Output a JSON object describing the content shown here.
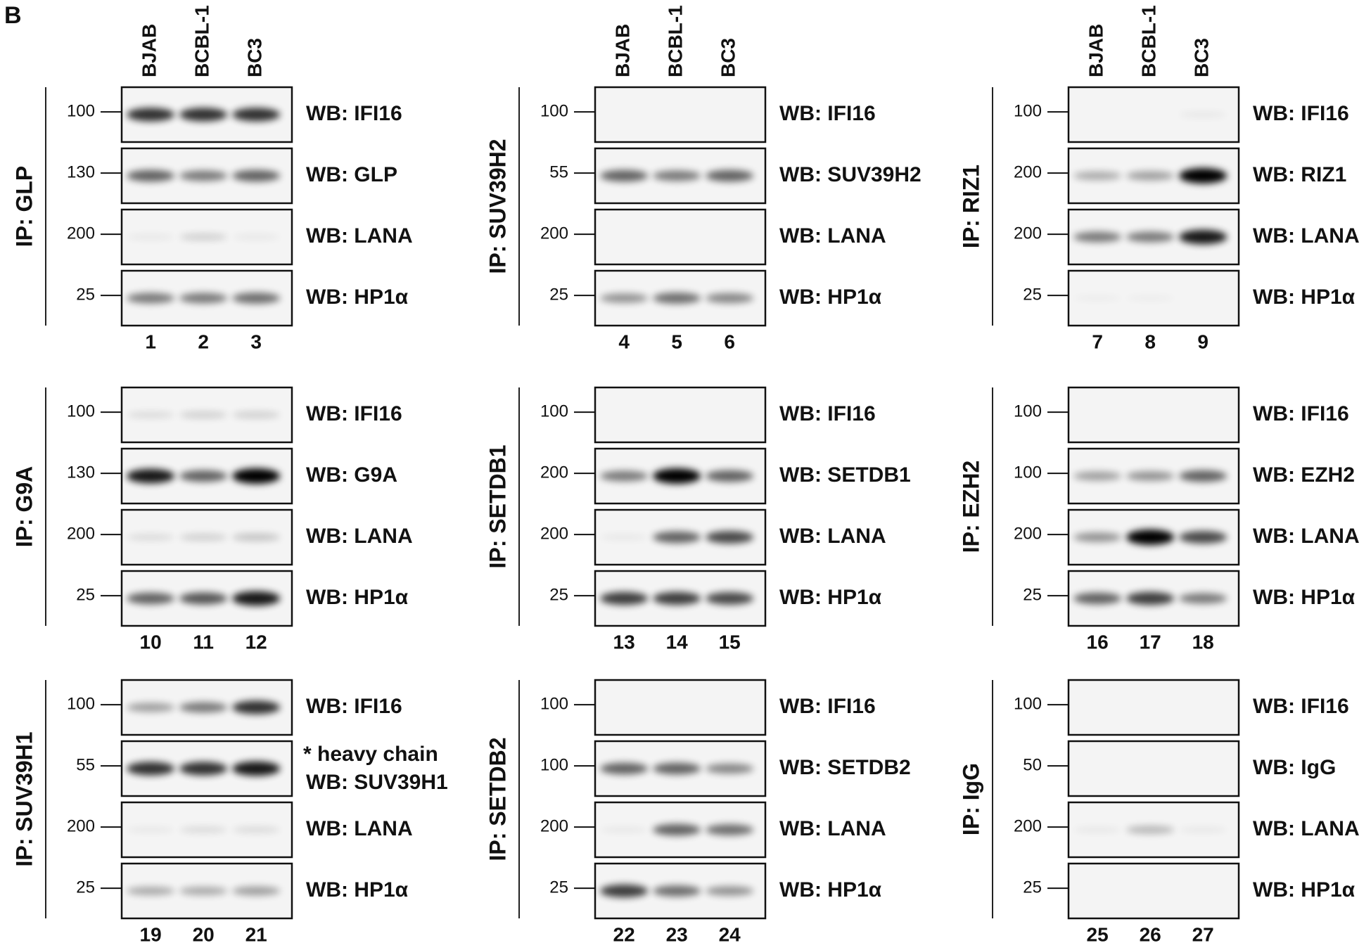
{
  "panel_label": "B",
  "lane_headers": [
    "BJAB",
    "BCBL-1",
    "BC3"
  ],
  "panels": [
    {
      "ip": "IP: GLP",
      "lanes": [
        "1",
        "2",
        "3"
      ],
      "blots": [
        {
          "marker": "100",
          "wb": "WB: IFI16"
        },
        {
          "marker": "130",
          "wb": "WB: GLP"
        },
        {
          "marker": "200",
          "wb": "WB: LANA"
        },
        {
          "marker": "25",
          "wb": "WB: HP1α"
        }
      ]
    },
    {
      "ip": "IP: SUV39H2",
      "lanes": [
        "4",
        "5",
        "6"
      ],
      "blots": [
        {
          "marker": "100",
          "wb": "WB: IFI16"
        },
        {
          "marker": "55",
          "wb": "WB: SUV39H2"
        },
        {
          "marker": "200",
          "wb": "WB: LANA"
        },
        {
          "marker": "25",
          "wb": "WB: HP1α"
        }
      ]
    },
    {
      "ip": "IP: RIZ1",
      "lanes": [
        "7",
        "8",
        "9"
      ],
      "blots": [
        {
          "marker": "100",
          "wb": "WB: IFI16"
        },
        {
          "marker": "200",
          "wb": "WB: RIZ1"
        },
        {
          "marker": "200",
          "wb": "WB: LANA"
        },
        {
          "marker": "25",
          "wb": "WB: HP1α"
        }
      ]
    },
    {
      "ip": "IP: G9A",
      "lanes": [
        "10",
        "11",
        "12"
      ],
      "blots": [
        {
          "marker": "100",
          "wb": "WB: IFI16"
        },
        {
          "marker": "130",
          "wb": "WB: G9A"
        },
        {
          "marker": "200",
          "wb": "WB: LANA"
        },
        {
          "marker": "25",
          "wb": "WB: HP1α"
        }
      ]
    },
    {
      "ip": "IP: SETDB1",
      "lanes": [
        "13",
        "14",
        "15"
      ],
      "blots": [
        {
          "marker": "100",
          "wb": "WB: IFI16"
        },
        {
          "marker": "200",
          "wb": "WB: SETDB1"
        },
        {
          "marker": "200",
          "wb": "WB: LANA"
        },
        {
          "marker": "25",
          "wb": "WB: HP1α"
        }
      ]
    },
    {
      "ip": "IP: EZH2",
      "lanes": [
        "16",
        "17",
        "18"
      ],
      "blots": [
        {
          "marker": "100",
          "wb": "WB: IFI16"
        },
        {
          "marker": "100",
          "wb": "WB: EZH2"
        },
        {
          "marker": "200",
          "wb": "WB: LANA"
        },
        {
          "marker": "25",
          "wb": "WB: HP1α"
        }
      ]
    },
    {
      "ip": "IP: SUV39H1",
      "lanes": [
        "19",
        "20",
        "21"
      ],
      "blots": [
        {
          "marker": "100",
          "wb": "WB: IFI16"
        },
        {
          "marker": "55",
          "wb": "WB: SUV39H1",
          "note": "* heavy chain"
        },
        {
          "marker": "200",
          "wb": "WB: LANA"
        },
        {
          "marker": "25",
          "wb": "WB: HP1α"
        }
      ]
    },
    {
      "ip": "IP: SETDB2",
      "lanes": [
        "22",
        "23",
        "24"
      ],
      "blots": [
        {
          "marker": "100",
          "wb": "WB: IFI16"
        },
        {
          "marker": "100",
          "wb": "WB: SETDB2"
        },
        {
          "marker": "200",
          "wb": "WB: LANA"
        },
        {
          "marker": "25",
          "wb": "WB: HP1α"
        }
      ]
    },
    {
      "ip": "IP: IgG",
      "lanes": [
        "25",
        "26",
        "27"
      ],
      "blots": [
        {
          "marker": "100",
          "wb": "WB: IFI16"
        },
        {
          "marker": "50",
          "wb": "WB: IgG"
        },
        {
          "marker": "200",
          "wb": "WB: LANA"
        },
        {
          "marker": "25",
          "wb": "WB: HP1α"
        }
      ]
    }
  ]
}
